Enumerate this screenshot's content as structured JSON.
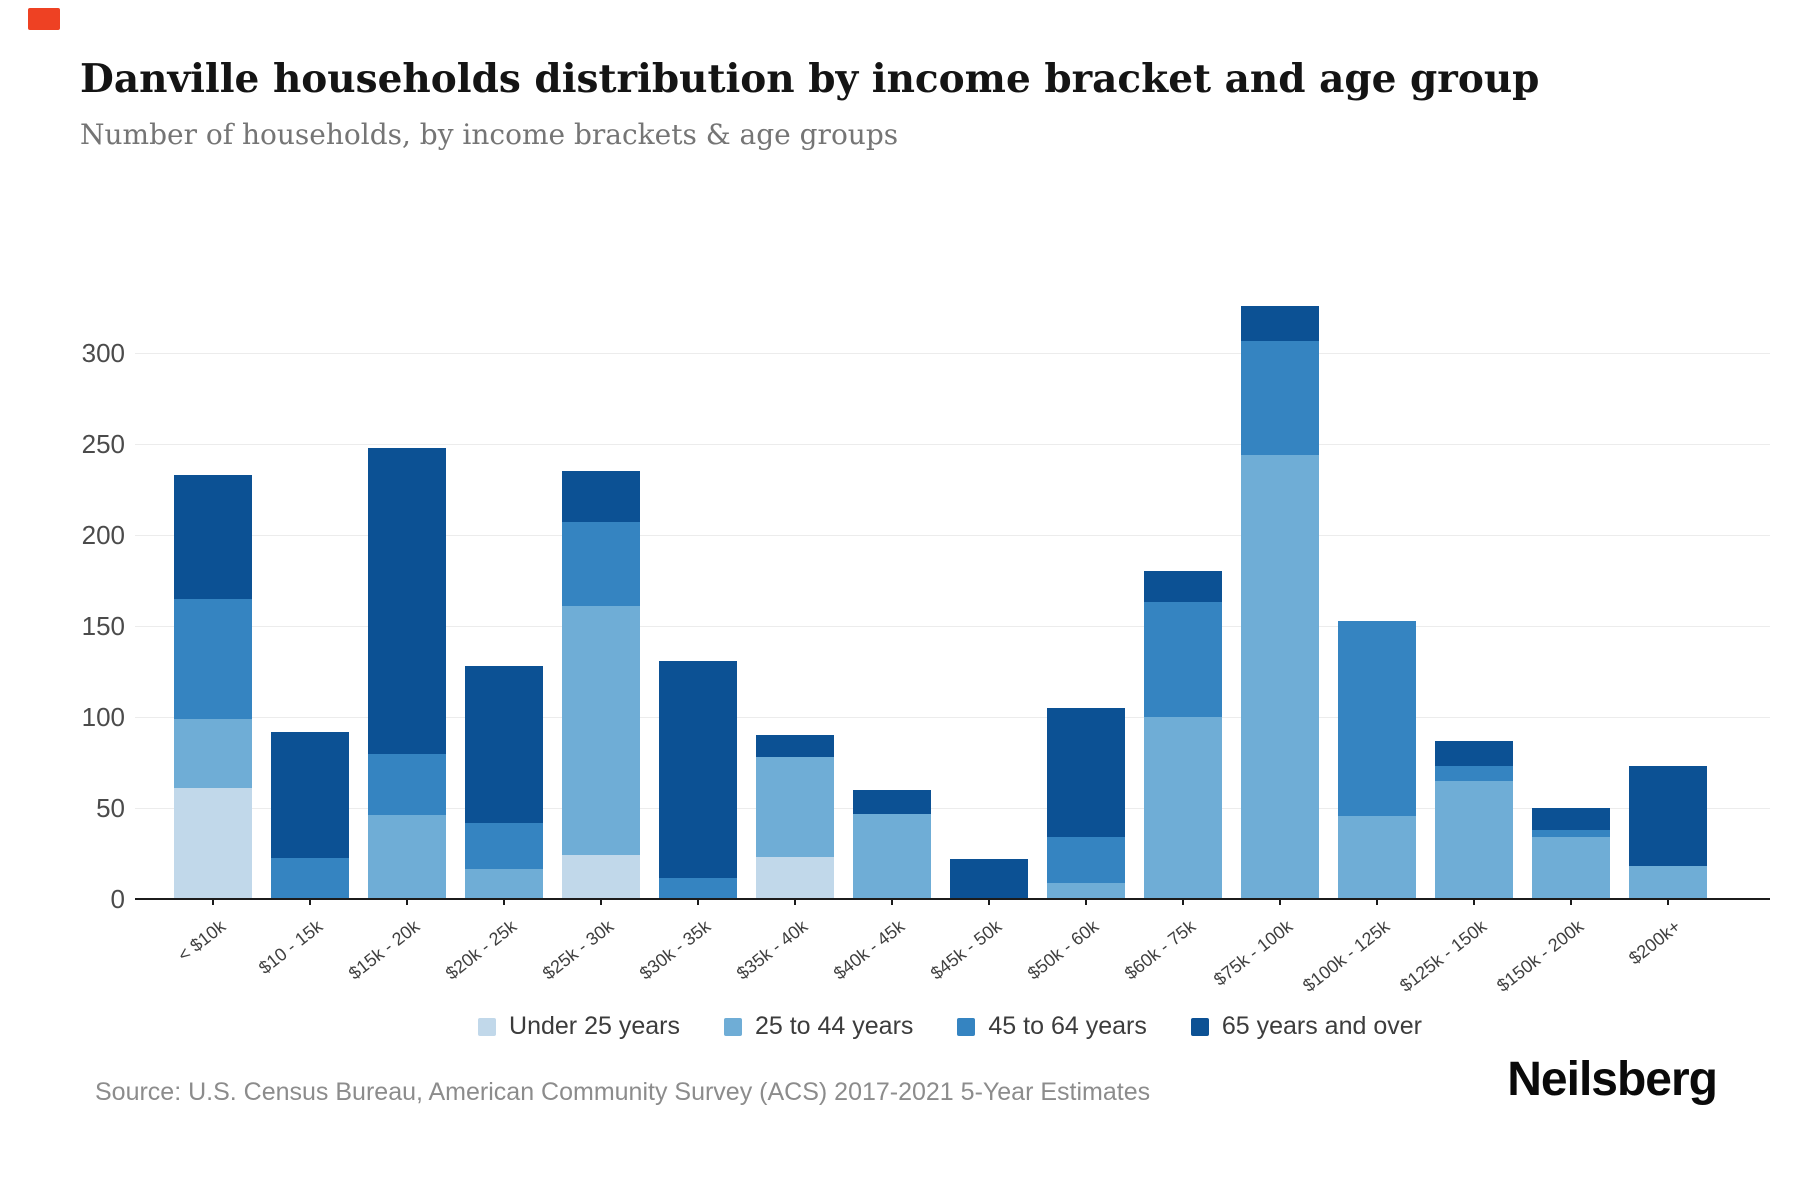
{
  "header": {
    "title": "Danville households distribution by income bracket and age group",
    "subtitle": "Number of households, by income brackets & age groups"
  },
  "footer": {
    "source": "Source: U.S. Census Bureau, American Community Survey (ACS) 2017-2021 5-Year Estimates",
    "logo": "Neilsberg"
  },
  "chart_data": {
    "type": "bar",
    "stacked": true,
    "title": "Danville households distribution by income bracket and age group",
    "xlabel": "",
    "ylabel": "",
    "ylim": [
      0,
      300
    ],
    "ytick_step": 50,
    "yticks": [
      0,
      50,
      100,
      150,
      200,
      250,
      300
    ],
    "grid": true,
    "legend_position": "bottom",
    "categories": [
      "< $10k",
      "$10 - 15k",
      "$15k - 20k",
      "$20k - 25k",
      "$25k - 30k",
      "$30k - 35k",
      "$35k - 40k",
      "$40k - 45k",
      "$45k - 50k",
      "$50k - 60k",
      "$60k - 75k",
      "$75k - 100k",
      "$100k - 125k",
      "$125k - 150k",
      "$150k - 200k",
      "$200k+"
    ],
    "series": [
      {
        "name": "Under 25 years",
        "color": "#c1d8ea",
        "values": [
          61,
          0,
          0,
          0,
          24,
          0,
          23,
          0,
          0,
          0,
          0,
          0,
          0,
          0,
          0,
          0
        ]
      },
      {
        "name": "25 to 44 years",
        "color": "#6fadd6",
        "values": [
          38,
          0,
          46,
          17,
          137,
          0,
          55,
          47,
          0,
          9,
          100,
          244,
          46,
          65,
          34,
          18
        ]
      },
      {
        "name": "45 to 64 years",
        "color": "#3584c1",
        "values": [
          66,
          23,
          34,
          25,
          46,
          12,
          0,
          0,
          0,
          25,
          63,
          63,
          107,
          8,
          4,
          0
        ]
      },
      {
        "name": "65 years and over",
        "color": "#0c5194",
        "values": [
          68,
          69,
          168,
          86,
          28,
          119,
          12,
          13,
          22,
          71,
          17,
          19,
          0,
          14,
          12,
          55
        ]
      }
    ],
    "totals": [
      233,
      92,
      248,
      128,
      235,
      131,
      90,
      60,
      22,
      105,
      180,
      326,
      153,
      87,
      50,
      73
    ]
  }
}
